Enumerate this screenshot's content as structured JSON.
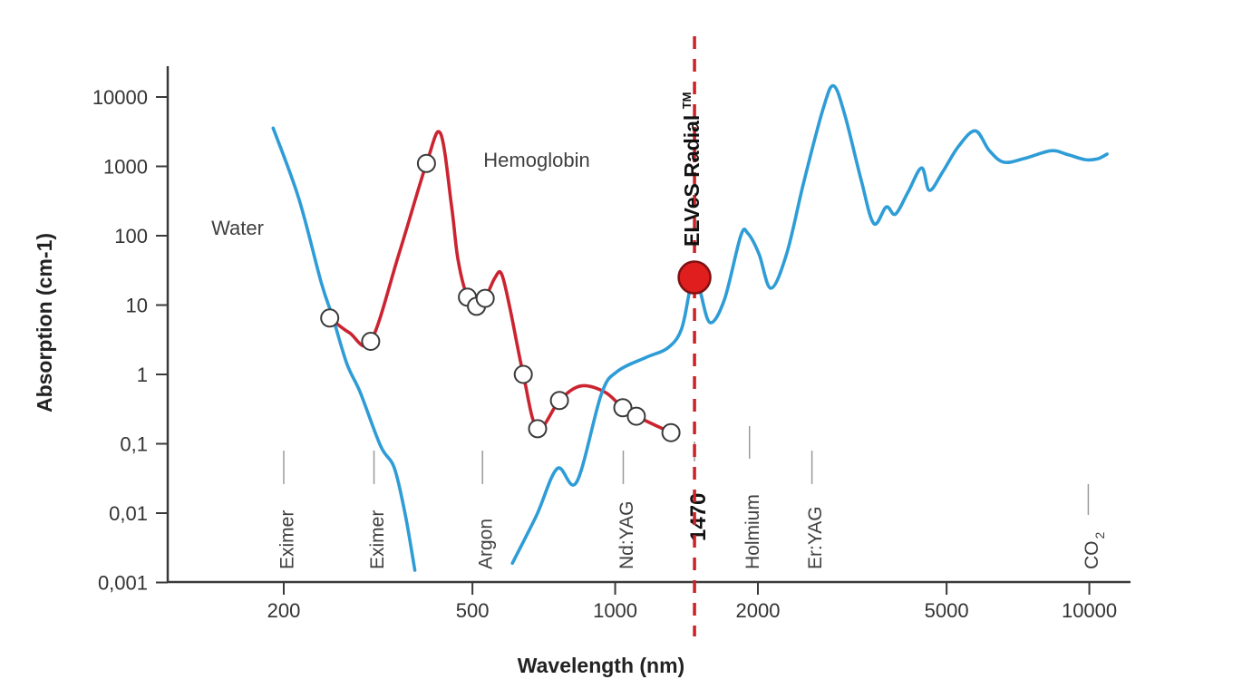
{
  "colors": {
    "water_line": "#2E9CD6",
    "hemoglobin_line": "#CB2430",
    "dashed_line": "#CC2126",
    "dot_fill": "#E01E1E",
    "dot_stroke": "#7E1113",
    "axis": "#3A3A3A",
    "leader": "#9A9A9A",
    "text": "#3F3F3F"
  },
  "axes": {
    "y": {
      "label": "Absorption (cm-1)",
      "ticks": [
        {
          "label": "10000",
          "value": 10000
        },
        {
          "label": "1000",
          "value": 1000
        },
        {
          "label": "100",
          "value": 100
        },
        {
          "label": "10",
          "value": 10
        },
        {
          "label": "1",
          "value": 1
        },
        {
          "label": "0,1",
          "value": 0.1
        },
        {
          "label": "0,01",
          "value": 0.01
        },
        {
          "label": "0,001",
          "value": 0.001
        }
      ]
    },
    "x": {
      "label": "Wavelength (nm)",
      "ticks": [
        {
          "label": "200",
          "value": 200
        },
        {
          "label": "500",
          "value": 500
        },
        {
          "label": "1000",
          "value": 1000
        },
        {
          "label": "2000",
          "value": 2000
        },
        {
          "label": "5000",
          "value": 5000
        },
        {
          "label": "10000",
          "value": 10000
        }
      ]
    }
  },
  "series_labels": {
    "water": "Water",
    "hemoglobin": "Hemoglobin"
  },
  "annotation": {
    "elves_label": "ELVeS Radial",
    "tm": "TM",
    "wavelength_nm": 1470,
    "dot_absorption": 25
  },
  "lasers": [
    {
      "label": "Eximer",
      "nm": 200
    },
    {
      "label": "Eximer",
      "nm": 310
    },
    {
      "label": "Argon",
      "nm": 525
    },
    {
      "label": "Nd:YAG",
      "nm": 1040
    },
    {
      "label": "1470",
      "nm": 1470,
      "emphasis": true
    },
    {
      "label": "Holmium",
      "nm": 1920
    },
    {
      "label": "Er:YAG",
      "nm": 2600
    },
    {
      "label": "CO",
      "subscript": "2",
      "nm": 9950
    }
  ],
  "chart_data": {
    "type": "line",
    "title": "",
    "xlabel": "Wavelength (nm)",
    "ylabel": "Absorption (cm-1)",
    "x_scale": "log",
    "y_scale": "log",
    "x_range": [
      114,
      12200
    ],
    "y_range": [
      0.001,
      15000
    ],
    "grid": false,
    "legend_position": "inline",
    "series": [
      {
        "name": "Water",
        "color": "#2E9CD6",
        "segments": [
          [
            [
              190,
              3560
            ],
            [
              215,
              350
            ],
            [
              240,
              21
            ],
            [
              254,
              6.5
            ],
            [
              272,
              1.4
            ],
            [
              290,
              0.55
            ],
            [
              320,
              0.093
            ],
            [
              342,
              0.045
            ],
            [
              361,
              0.0094
            ],
            [
              378,
              0.0015
            ]
          ],
          [
            [
              607,
              0.0019
            ],
            [
              683,
              0.0094
            ],
            [
              755,
              0.044
            ],
            [
              829,
              0.028
            ],
            [
              935,
              0.52
            ],
            [
              1010,
              1.1
            ],
            [
              1160,
              1.75
            ],
            [
              1290,
              2.4
            ],
            [
              1380,
              4.5
            ],
            [
              1440,
              18
            ],
            [
              1468,
              26
            ],
            [
              1510,
              16
            ],
            [
              1585,
              5.6
            ],
            [
              1700,
              12
            ],
            [
              1840,
              100
            ],
            [
              1905,
              108
            ],
            [
              2010,
              55
            ],
            [
              2130,
              17.5
            ],
            [
              2300,
              55
            ],
            [
              2500,
              600
            ],
            [
              2750,
              7000
            ],
            [
              2890,
              14500
            ],
            [
              3050,
              5500
            ],
            [
              3300,
              650
            ],
            [
              3510,
              150
            ],
            [
              3730,
              260
            ],
            [
              3900,
              205
            ],
            [
              4150,
              430
            ],
            [
              4430,
              950
            ],
            [
              4600,
              450
            ],
            [
              4900,
              820
            ],
            [
              5300,
              1950
            ],
            [
              5750,
              3250
            ],
            [
              6150,
              1700
            ],
            [
              6600,
              1150
            ],
            [
              7300,
              1300
            ],
            [
              8300,
              1680
            ],
            [
              9000,
              1480
            ],
            [
              9800,
              1250
            ],
            [
              10400,
              1280
            ],
            [
              10900,
              1500
            ]
          ]
        ]
      },
      {
        "name": "Hemoglobin",
        "color": "#CB2430",
        "segments": [
          [
            [
              250,
              6.5
            ],
            [
              275,
              4.0
            ],
            [
              305,
              3.0
            ],
            [
              350,
              55
            ],
            [
              400,
              1100
            ],
            [
              428,
              3000
            ],
            [
              452,
              260
            ],
            [
              466,
              46
            ],
            [
              488,
              13
            ],
            [
              510,
              9.6
            ],
            [
              532,
              12.5
            ],
            [
              558,
              25
            ],
            [
              576,
              28
            ],
            [
              600,
              9
            ],
            [
              640,
              1.0
            ],
            [
              686,
              0.165
            ],
            [
              763,
              0.42
            ],
            [
              845,
              0.68
            ],
            [
              950,
              0.56
            ],
            [
              1038,
              0.33
            ],
            [
              1108,
              0.25
            ],
            [
              1311,
              0.145
            ]
          ]
        ],
        "markers": [
          [
            250,
            6.5
          ],
          [
            305,
            3.0
          ],
          [
            400,
            1100
          ],
          [
            488,
            13
          ],
          [
            510,
            9.6
          ],
          [
            532,
            12.5
          ],
          [
            640,
            1.0
          ],
          [
            686,
            0.165
          ],
          [
            763,
            0.42
          ],
          [
            1038,
            0.33
          ],
          [
            1108,
            0.25
          ],
          [
            1311,
            0.145
          ]
        ]
      }
    ]
  }
}
